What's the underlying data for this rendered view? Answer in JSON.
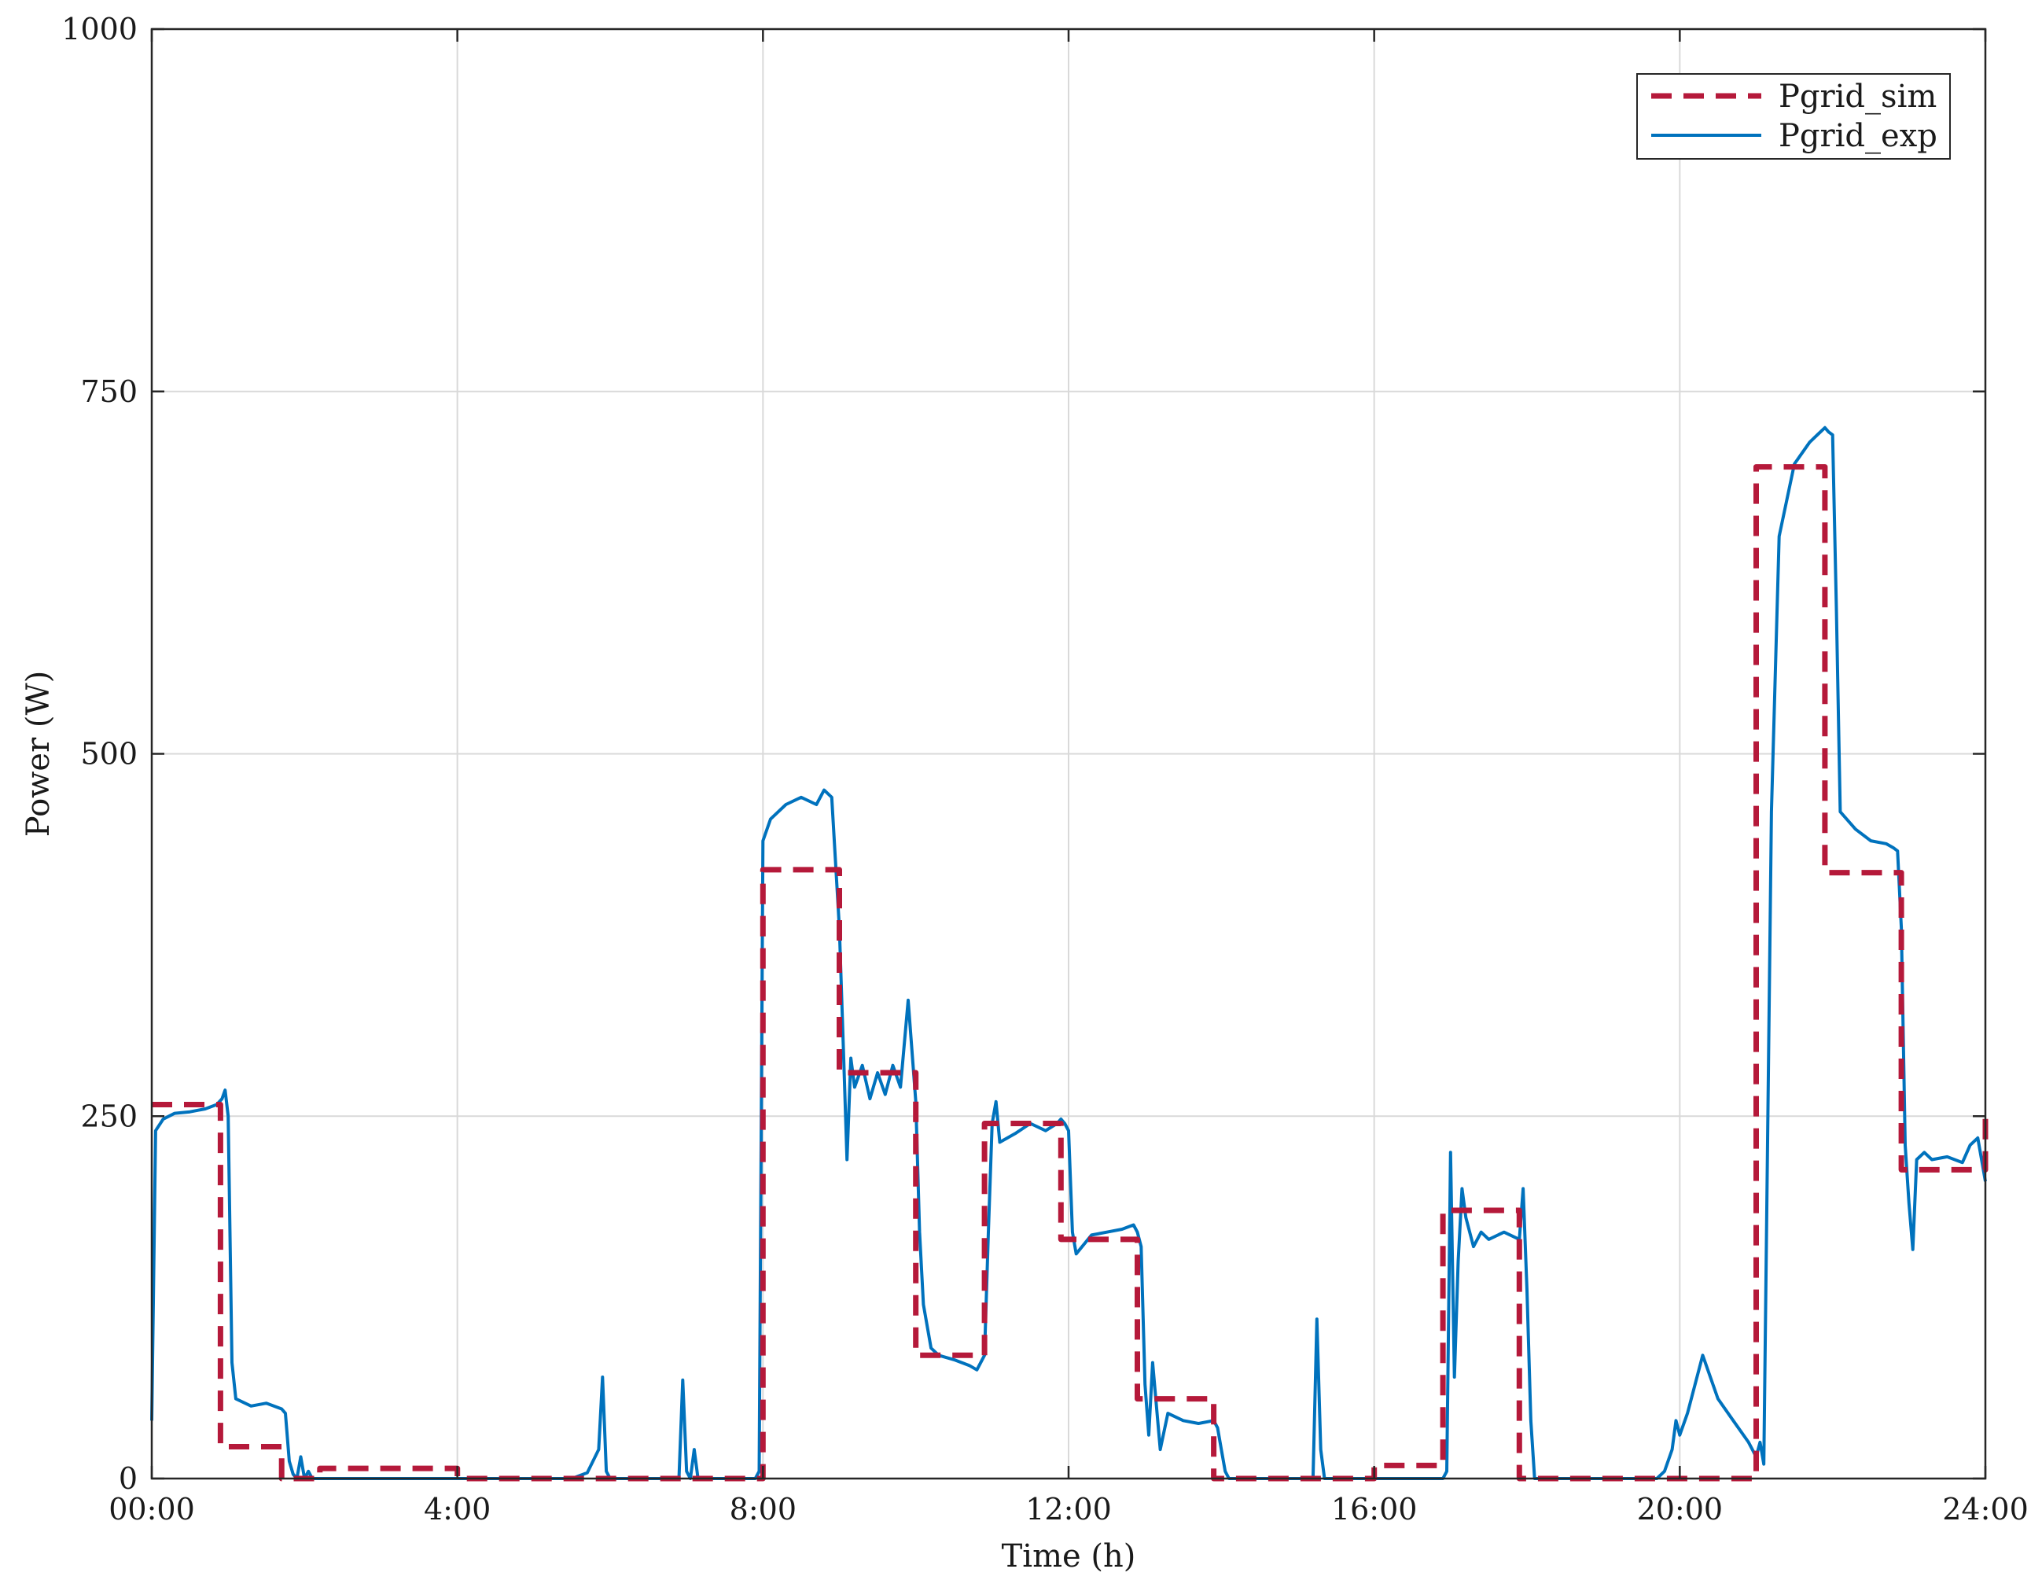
{
  "chart_data": {
    "type": "line",
    "xlabel": "Time (h)",
    "ylabel": "Power (W)",
    "xlim": [
      0,
      24
    ],
    "ylim": [
      0,
      1000
    ],
    "x_ticks": [
      0,
      4,
      8,
      12,
      16,
      20,
      24
    ],
    "x_tick_labels": [
      "00:00",
      "4:00",
      "8:00",
      "12:00",
      "16:00",
      "20:00",
      "24:00"
    ],
    "y_ticks": [
      0,
      250,
      500,
      750,
      1000
    ],
    "y_tick_labels": [
      "0",
      "250",
      "500",
      "750",
      "1000"
    ],
    "grid": true,
    "legend_position": "top-right",
    "series": [
      {
        "name": "Pgrid_sim",
        "color": "#b5193a",
        "style": "dashed",
        "x": [
          0,
          0.9,
          0.9,
          1.7,
          1.7,
          2.2,
          2.2,
          4.0,
          4.0,
          8.0,
          8.0,
          9.0,
          9.0,
          10.0,
          10.0,
          10.9,
          10.9,
          11.9,
          11.9,
          12.9,
          12.9,
          13.9,
          13.9,
          14.2,
          14.2,
          16.0,
          16.0,
          16.9,
          16.9,
          17.9,
          17.9,
          21.0,
          21.0,
          21.9,
          21.9,
          22.9,
          22.9,
          24.0,
          24.0
        ],
        "y": [
          258,
          258,
          22,
          22,
          0,
          0,
          7,
          7,
          0,
          0,
          420,
          420,
          280,
          280,
          85,
          85,
          245,
          245,
          165,
          165,
          55,
          55,
          0,
          0,
          0,
          0,
          9,
          9,
          185,
          185,
          0,
          0,
          698,
          698,
          418,
          418,
          213,
          213,
          250
        ]
      },
      {
        "name": "Pgrid_exp",
        "color": "#0072bd",
        "style": "solid",
        "x": [
          0,
          0.05,
          0.15,
          0.3,
          0.5,
          0.7,
          0.85,
          0.92,
          0.96,
          1.0,
          1.05,
          1.1,
          1.3,
          1.5,
          1.7,
          1.75,
          1.8,
          1.85,
          1.9,
          1.95,
          2.0,
          2.05,
          2.1,
          5.5,
          5.7,
          5.85,
          5.9,
          5.95,
          6.0,
          6.9,
          6.95,
          7.0,
          7.05,
          7.1,
          7.15,
          7.2,
          7.9,
          7.95,
          8.0,
          8.1,
          8.3,
          8.5,
          8.7,
          8.8,
          8.9,
          9.0,
          9.05,
          9.1,
          9.15,
          9.2,
          9.3,
          9.4,
          9.5,
          9.6,
          9.7,
          9.8,
          9.9,
          10.0,
          10.05,
          10.1,
          10.2,
          10.3,
          10.5,
          10.7,
          10.8,
          10.9,
          10.95,
          11.0,
          11.05,
          11.1,
          11.3,
          11.5,
          11.7,
          11.85,
          11.9,
          11.95,
          12.0,
          12.05,
          12.1,
          12.3,
          12.5,
          12.7,
          12.85,
          12.9,
          12.95,
          13.0,
          13.05,
          13.1,
          13.2,
          13.3,
          13.5,
          13.7,
          13.9,
          13.95,
          14.0,
          14.05,
          14.1,
          15.2,
          15.25,
          15.3,
          15.35,
          15.4,
          16.9,
          16.95,
          17.0,
          17.05,
          17.1,
          17.15,
          17.2,
          17.3,
          17.4,
          17.5,
          17.7,
          17.9,
          17.95,
          18.0,
          18.05,
          18.1,
          19.5,
          19.7,
          19.8,
          19.9,
          19.95,
          20.0,
          20.1,
          20.3,
          20.5,
          20.7,
          20.9,
          20.95,
          21.0,
          21.05,
          21.1,
          21.2,
          21.3,
          21.5,
          21.7,
          21.8,
          21.9,
          21.95,
          22.0,
          22.05,
          22.1,
          22.3,
          22.5,
          22.7,
          22.8,
          22.85,
          22.9,
          22.95,
          23.0,
          23.05,
          23.1,
          23.2,
          23.3,
          23.5,
          23.7,
          23.8,
          23.9,
          24.0
        ],
        "y": [
          40,
          240,
          248,
          252,
          253,
          255,
          258,
          262,
          268,
          250,
          80,
          55,
          50,
          52,
          48,
          45,
          12,
          3,
          0,
          15,
          0,
          5,
          0,
          0,
          4,
          20,
          70,
          5,
          0,
          0,
          68,
          5,
          0,
          20,
          0,
          0,
          0,
          5,
          440,
          455,
          465,
          470,
          465,
          475,
          470,
          380,
          300,
          220,
          290,
          270,
          285,
          262,
          280,
          265,
          285,
          270,
          330,
          260,
          170,
          120,
          90,
          85,
          82,
          78,
          75,
          85,
          170,
          245,
          260,
          232,
          238,
          245,
          240,
          245,
          248,
          245,
          240,
          170,
          155,
          168,
          170,
          172,
          175,
          170,
          160,
          65,
          30,
          80,
          20,
          45,
          40,
          38,
          40,
          35,
          20,
          5,
          0,
          0,
          110,
          20,
          0,
          0,
          0,
          5,
          225,
          70,
          150,
          200,
          180,
          160,
          170,
          165,
          170,
          165,
          200,
          130,
          40,
          0,
          0,
          0,
          5,
          20,
          40,
          30,
          45,
          85,
          55,
          40,
          25,
          20,
          15,
          25,
          10,
          460,
          650,
          700,
          715,
          720,
          725,
          722,
          720,
          600,
          460,
          448,
          440,
          438,
          435,
          433,
          380,
          230,
          190,
          158,
          220,
          225,
          220,
          222,
          218,
          230,
          235,
          205
        ]
      }
    ]
  }
}
